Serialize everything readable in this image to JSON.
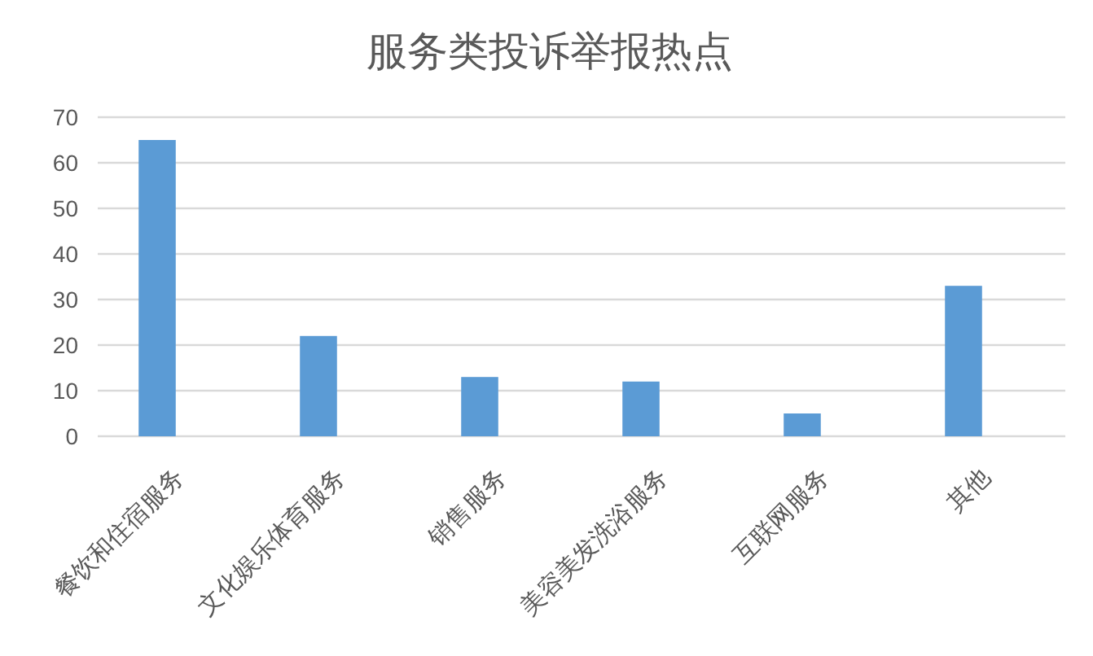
{
  "chart_data": {
    "type": "bar",
    "title": "服务类投诉举报热点",
    "categories": [
      "餐饮和住宿服务",
      "文化娱乐体育服务",
      "销售服务",
      "美容美发洗浴服务",
      "互联网服务",
      "其他"
    ],
    "values": [
      65,
      22,
      13,
      12,
      5,
      33
    ],
    "color": "#5b9bd5",
    "ylim": [
      0,
      70
    ],
    "yticks": [
      0,
      10,
      20,
      30,
      40,
      50,
      60,
      70
    ],
    "grid": "y"
  }
}
